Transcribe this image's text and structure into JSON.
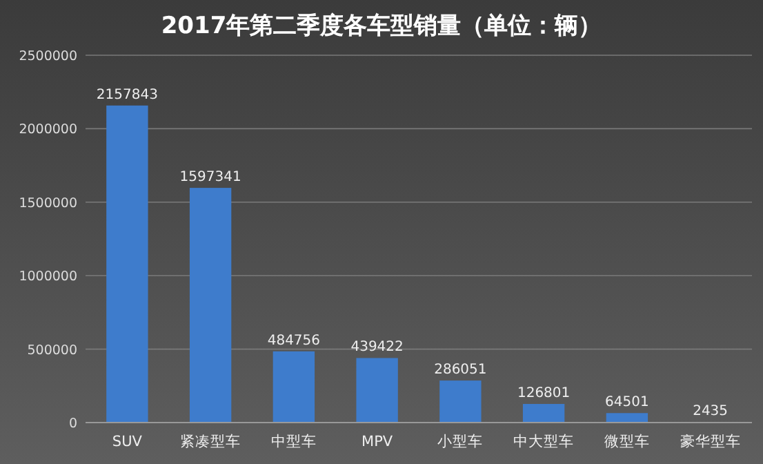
{
  "chart_data": {
    "type": "bar",
    "title": "2017年第二季度各车型销量（单位：辆）",
    "categories": [
      "SUV",
      "紧凑型车",
      "中型车",
      "MPV",
      "小型车",
      "中大型车",
      "微型车",
      "豪华型车"
    ],
    "values": [
      2157843,
      1597341,
      484756,
      439422,
      286051,
      126801,
      64501,
      2435
    ],
    "color": "#3e7ccc",
    "ylim": [
      0,
      2500000
    ],
    "yticks": [
      0,
      500000,
      1000000,
      1500000,
      2000000,
      2500000
    ],
    "grid": "y",
    "data_labels": true
  }
}
